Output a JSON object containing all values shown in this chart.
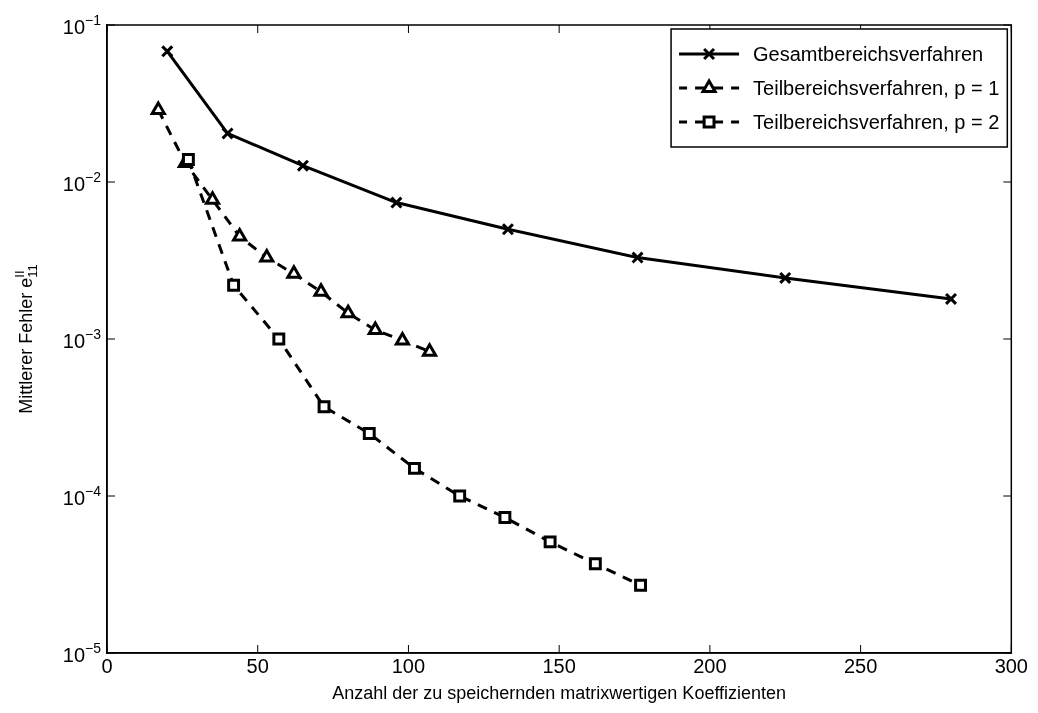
{
  "chart_data": {
    "type": "line",
    "xlabel": "Anzahl der zu speichernden matrixwertigen Koeffizienten",
    "ylabel": "Mittlerer Fehler e$^{II}$$_{11}$",
    "xlim": [
      0,
      300
    ],
    "xticks": [
      0,
      50,
      100,
      150,
      200,
      250,
      300
    ],
    "ylim": [
      1e-05,
      0.1
    ],
    "yticks": [
      {
        "value": 1e-05,
        "label": "10$^{−5}$"
      },
      {
        "value": 0.0001,
        "label": "10$^{−4}$"
      },
      {
        "value": 0.001,
        "label": "10$^{−3}$"
      },
      {
        "value": 0.01,
        "label": "10$^{−2}$"
      },
      {
        "value": 0.1,
        "label": "10$^{−1}$"
      }
    ],
    "log": "y",
    "grid": false,
    "legend": "top right",
    "series": [
      {
        "name": "Gesamtbereichsverfahren",
        "color": "#000000",
        "marker": "cross",
        "line_style": "solid",
        "x": [
          20,
          40,
          65,
          96,
          133,
          176,
          225,
          280
        ],
        "values": [
          0.068,
          0.0204,
          0.0127,
          0.0074,
          0.005,
          0.0033,
          0.00245,
          0.0018
        ]
      },
      {
        "name": "Teilbereichsverfahren, p = 1",
        "color": "#000000",
        "marker": "triangle",
        "line_style": "dashed",
        "x": [
          17,
          26,
          35,
          44,
          53,
          62,
          71,
          80,
          89,
          98,
          107
        ],
        "values": [
          0.0288,
          0.0132,
          0.0077,
          0.0045,
          0.0033,
          0.0026,
          0.002,
          0.00146,
          0.00114,
          0.00098,
          0.00083
        ]
      },
      {
        "name": "Teilbereichsverfahren, p = 2",
        "color": "#000000",
        "marker": "square",
        "line_style": "dashed",
        "x": [
          27,
          42,
          57,
          72,
          87,
          102,
          117,
          132,
          147,
          162,
          177
        ],
        "values": [
          0.0139,
          0.0022,
          0.001,
          0.00037,
          0.00025,
          0.00015,
          0.0001,
          7.3e-05,
          5.1e-05,
          3.7e-05,
          2.7e-05
        ]
      }
    ]
  }
}
